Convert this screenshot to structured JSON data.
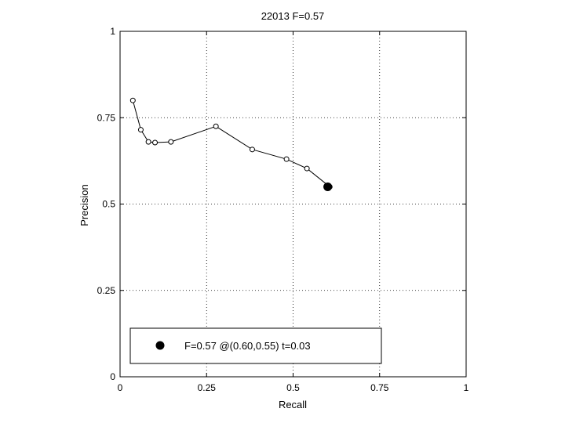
{
  "chart_data": {
    "type": "line",
    "title": "22013 F=0.57",
    "xlabel": "Recall",
    "ylabel": "Precision",
    "xlim": [
      0,
      1
    ],
    "ylim": [
      0,
      1
    ],
    "grid": true,
    "grid_style": "dotted",
    "x_ticks": [
      0,
      0.25,
      0.5,
      0.75,
      1
    ],
    "x_tick_labels": [
      "0",
      "0.25",
      "0.5",
      "0.75",
      "1"
    ],
    "y_ticks": [
      0,
      0.25,
      0.5,
      0.75,
      1
    ],
    "y_tick_labels": [
      "0",
      "0.25",
      "0.5",
      "0.75",
      "1"
    ],
    "series": [
      {
        "x": [
          0.037,
          0.06,
          0.082,
          0.101,
          0.147,
          0.277,
          0.382,
          0.481,
          0.54,
          0.606
        ],
        "y": [
          0.8,
          0.715,
          0.68,
          0.678,
          0.68,
          0.725,
          0.658,
          0.63,
          0.603,
          0.55
        ],
        "marker": "open-circle",
        "color": "#000000"
      }
    ],
    "highlight_point": {
      "x": 0.6,
      "y": 0.55,
      "marker": "filled-circle",
      "color": "#000000"
    },
    "legend": {
      "text": "F=0.57 @(0.60,0.55) t=0.03",
      "placement": "bottom-left"
    }
  }
}
